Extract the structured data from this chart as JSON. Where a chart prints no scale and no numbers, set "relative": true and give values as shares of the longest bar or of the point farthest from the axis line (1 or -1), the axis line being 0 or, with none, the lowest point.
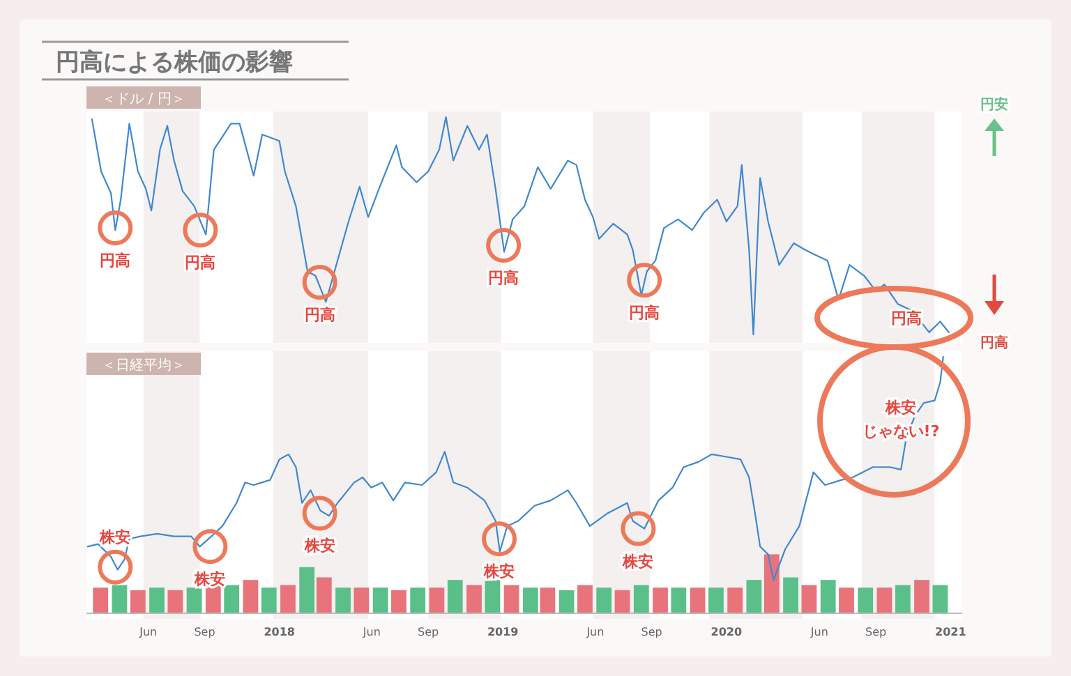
{
  "chart_data": [
    {
      "type": "line",
      "title": "円高による株価の影響",
      "subtitle": "＜ドル / 円＞",
      "relative": true,
      "tick_labels": false,
      "xlim": [
        "2017-02-20",
        "2021-01-20"
      ],
      "bands": [
        {
          "axis": "x",
          "from": "2017-05-24",
          "to": "2017-08-24",
          "color": "#f4f0f0"
        },
        {
          "axis": "x",
          "from": "2017-12-22",
          "to": "2018-05-26",
          "color": "#f4f0f0"
        },
        {
          "axis": "x",
          "from": "2018-09-01",
          "to": "2018-12-29",
          "color": "#f4f0f0"
        },
        {
          "axis": "x",
          "from": "2019-05-28",
          "to": "2019-08-29",
          "color": "#f4f0f0"
        },
        {
          "axis": "x",
          "from": "2019-12-04",
          "to": "2020-05-04",
          "color": "#f4f0f0"
        },
        {
          "axis": "x",
          "from": "2020-08-09",
          "to": "2020-12-06",
          "color": "#f4f0f0"
        }
      ],
      "annotations": [
        {
          "text": "円高",
          "x": "2017-04-08",
          "y": 0.49
        },
        {
          "text": "円高",
          "x": "2017-08-25",
          "y": 0.48
        },
        {
          "text": "円高",
          "x": "2018-03-08",
          "y": 0.24
        },
        {
          "text": "円高",
          "x": "2019-01-02",
          "y": 0.41
        },
        {
          "text": "円高",
          "x": "2019-08-20",
          "y": 0.25
        },
        "円高",
        "円安",
        "円高"
      ],
      "series": [
        {
          "color": "#3f88d0",
          "x": [
            "2017-03-01",
            "2017-03-16",
            "2017-04-01",
            "2017-04-08",
            "2017-04-17",
            "2017-05-01",
            "2017-05-15",
            "2017-05-28",
            "2017-06-06",
            "2017-06-20",
            "2017-07-02",
            "2017-07-13",
            "2017-07-27",
            "2017-08-15",
            "2017-09-03",
            "2017-09-16",
            "2017-10-14",
            "2017-10-28",
            "2017-11-20",
            "2017-12-04",
            "2018-01-01",
            "2018-01-10",
            "2018-01-28",
            "2018-02-16",
            "2018-03-01",
            "2018-03-18",
            "2018-04-06",
            "2018-04-24",
            "2018-05-12",
            "2018-05-26",
            "2018-06-14",
            "2018-07-11",
            "2018-07-20",
            "2018-08-13",
            "2018-09-01",
            "2018-09-19",
            "2018-09-30",
            "2018-10-12",
            "2018-11-04",
            "2018-11-23",
            "2018-12-06",
            "2018-12-20",
            "2019-01-03",
            "2019-01-17",
            "2019-02-05",
            "2019-02-27",
            "2019-03-20",
            "2019-04-17",
            "2019-05-01",
            "2019-05-15",
            "2019-05-28",
            "2019-06-07",
            "2019-06-30",
            "2019-07-23",
            "2019-08-01",
            "2019-08-15",
            "2019-08-24",
            "2019-09-07",
            "2019-09-21",
            "2019-10-14",
            "2019-11-06",
            "2019-11-25",
            "2019-12-17",
            "2020-01-01",
            "2020-01-19",
            "2020-01-26",
            "2020-02-07",
            "2020-02-14",
            "2020-02-25",
            "2020-03-09",
            "2020-03-27",
            "2020-04-20",
            "2020-05-08",
            "2020-05-22",
            "2020-06-14",
            "2020-07-02",
            "2020-07-20",
            "2020-08-13",
            "2020-09-01",
            "2020-09-15",
            "2020-10-07",
            "2020-10-30",
            "2020-11-27",
            "2020-12-15",
            "2020-12-29"
          ],
          "values": [
            0.99,
            0.75,
            0.65,
            0.48,
            0.62,
            0.97,
            0.75,
            0.67,
            0.57,
            0.85,
            0.96,
            0.8,
            0.66,
            0.59,
            0.46,
            0.85,
            0.97,
            0.97,
            0.73,
            0.92,
            0.89,
            0.75,
            0.59,
            0.29,
            0.27,
            0.15,
            0.34,
            0.52,
            0.68,
            0.54,
            0.68,
            0.87,
            0.77,
            0.7,
            0.75,
            0.85,
            1,
            0.8,
            0.96,
            0.85,
            0.92,
            0.67,
            0.38,
            0.53,
            0.59,
            0.77,
            0.67,
            0.8,
            0.78,
            0.62,
            0.54,
            0.44,
            0.51,
            0.46,
            0.39,
            0.18,
            0.29,
            0.34,
            0.49,
            0.53,
            0.48,
            0.56,
            0.62,
            0.52,
            0.59,
            0.78,
            0.39,
            0,
            0.72,
            0.52,
            0.32,
            0.42,
            0.39,
            0.37,
            0.34,
            0.16,
            0.32,
            0.27,
            0.2,
            0.23,
            0.14,
            0.11,
            0.01,
            0.06,
            0.01
          ]
        }
      ]
    },
    {
      "type": "line",
      "subtitle": "＜日経平均＞",
      "relative": true,
      "tick_labels": "x",
      "xlim": [
        "2017-02-20",
        "2021-01-20"
      ],
      "xticks": [
        {
          "value": "2017-06-01",
          "label": "Jun"
        },
        {
          "value": "2017-09-01",
          "label": "Sep"
        },
        {
          "value": "2018-01-01",
          "label": "2018"
        },
        {
          "value": "2018-06-01",
          "label": "Jun"
        },
        {
          "value": "2018-09-01",
          "label": "Sep"
        },
        {
          "value": "2019-01-01",
          "label": "2019"
        },
        {
          "value": "2019-06-01",
          "label": "Jun"
        },
        {
          "value": "2019-09-01",
          "label": "Sep"
        },
        {
          "value": "2020-01-01",
          "label": "2020"
        },
        {
          "value": "2020-06-01",
          "label": "Jun"
        },
        {
          "value": "2020-09-01",
          "label": "Sep"
        },
        {
          "value": "2021-01-01",
          "label": "2021"
        }
      ],
      "bands": [
        {
          "axis": "x",
          "from": "2017-05-24",
          "to": "2017-08-24",
          "color": "#f4f0f0"
        },
        {
          "axis": "x",
          "from": "2017-12-22",
          "to": "2018-05-26",
          "color": "#f4f0f0"
        },
        {
          "axis": "x",
          "from": "2018-09-01",
          "to": "2018-12-29",
          "color": "#f4f0f0"
        },
        {
          "axis": "x",
          "from": "2019-05-28",
          "to": "2019-08-29",
          "color": "#f4f0f0"
        },
        {
          "axis": "x",
          "from": "2019-12-04",
          "to": "2020-05-04",
          "color": "#f4f0f0"
        },
        {
          "axis": "x",
          "from": "2020-08-09",
          "to": "2020-12-06",
          "color": "#f4f0f0"
        }
      ],
      "annotations": [
        {
          "text": "株安",
          "x": "2017-04-08",
          "y": 0.18
        },
        {
          "text": "株安",
          "x": "2017-09-10",
          "y": 0.26
        },
        {
          "text": "株安",
          "x": "2018-03-08",
          "y": 0.39
        },
        {
          "text": "株安",
          "x": "2018-12-26",
          "y": 0.29
        },
        {
          "text": "株安",
          "x": "2019-08-10",
          "y": 0.33
        },
        "株安",
        "じゃない!?"
      ],
      "series": [
        {
          "type": "bar",
          "x": [
            "2017-03-15",
            "2017-04-15",
            "2017-05-15",
            "2017-06-15",
            "2017-07-15",
            "2017-08-15",
            "2017-09-15",
            "2017-10-15",
            "2017-11-15",
            "2017-12-15",
            "2018-01-15",
            "2018-02-15",
            "2018-03-15",
            "2018-04-15",
            "2018-05-15",
            "2018-06-15",
            "2018-07-15",
            "2018-08-15",
            "2018-09-15",
            "2018-10-15",
            "2018-11-15",
            "2018-12-15",
            "2019-01-15",
            "2019-02-15",
            "2019-03-15",
            "2019-04-15",
            "2019-05-15",
            "2019-06-15",
            "2019-07-15",
            "2019-08-15",
            "2019-09-15",
            "2019-10-15",
            "2019-11-15",
            "2019-12-15",
            "2020-01-15",
            "2020-02-15",
            "2020-03-15",
            "2020-04-15",
            "2020-05-15",
            "2020-06-15",
            "2020-07-15",
            "2020-08-15",
            "2020-09-15",
            "2020-10-15",
            "2020-11-15",
            "2020-12-15"
          ],
          "values": [
            0.1,
            0.11,
            0.09,
            0.1,
            0.09,
            0.1,
            0.11,
            0.11,
            0.13,
            0.1,
            0.11,
            0.18,
            0.14,
            0.1,
            0.1,
            0.1,
            0.09,
            0.1,
            0.1,
            0.13,
            0.11,
            0.13,
            0.11,
            0.1,
            0.1,
            0.09,
            0.11,
            0.1,
            0.09,
            0.11,
            0.1,
            0.1,
            0.1,
            0.1,
            0.1,
            0.13,
            0.23,
            0.14,
            0.11,
            0.13,
            0.1,
            0.1,
            0.1,
            0.11,
            0.13,
            0.11
          ],
          "colors": [
            "#e8737a",
            "#5bbf8a",
            "#e8737a",
            "#5bbf8a",
            "#e8737a",
            "#5bbf8a",
            "#e8737a",
            "#5bbf8a",
            "#e8737a",
            "#5bbf8a",
            "#e8737a",
            "#5bbf8a",
            "#e8737a",
            "#5bbf8a",
            "#e8737a",
            "#5bbf8a",
            "#e8737a",
            "#5bbf8a",
            "#e8737a",
            "#5bbf8a",
            "#e8737a",
            "#5bbf8a",
            "#e8737a",
            "#5bbf8a",
            "#e8737a",
            "#5bbf8a",
            "#e8737a",
            "#5bbf8a",
            "#e8737a",
            "#5bbf8a",
            "#e8737a",
            "#5bbf8a",
            "#e8737a",
            "#5bbf8a",
            "#e8737a",
            "#5bbf8a",
            "#e8737a",
            "#5bbf8a",
            "#e8737a",
            "#5bbf8a",
            "#e8737a",
            "#5bbf8a",
            "#e8737a",
            "#5bbf8a",
            "#e8737a",
            "#5bbf8a"
          ]
        },
        {
          "color": "#3f88d0",
          "x": [
            "2017-02-22",
            "2017-03-11",
            "2017-04-01",
            "2017-04-12",
            "2017-04-23",
            "2017-05-01",
            "2017-05-19",
            "2017-06-16",
            "2017-07-13",
            "2017-08-10",
            "2017-08-24",
            "2017-09-12",
            "2017-09-30",
            "2017-10-23",
            "2017-11-06",
            "2017-11-20",
            "2017-12-17",
            "2018-01-01",
            "2018-01-16",
            "2018-01-28",
            "2018-02-07",
            "2018-02-21",
            "2018-03-09",
            "2018-03-23",
            "2018-04-06",
            "2018-05-03",
            "2018-05-17",
            "2018-05-31",
            "2018-06-18",
            "2018-07-06",
            "2018-07-25",
            "2018-08-22",
            "2018-09-14",
            "2018-09-28",
            "2018-10-12",
            "2018-11-04",
            "2018-12-02",
            "2018-12-20",
            "2018-12-27",
            "2019-01-08",
            "2019-01-26",
            "2019-02-22",
            "2019-03-20",
            "2019-04-17",
            "2019-05-01",
            "2019-05-23",
            "2019-06-21",
            "2019-07-23",
            "2019-08-01",
            "2019-08-20",
            "2019-09-12",
            "2019-10-05",
            "2019-10-23",
            "2019-11-16",
            "2019-12-08",
            "2020-01-01",
            "2020-01-24",
            "2020-02-07",
            "2020-02-16",
            "2020-02-25",
            "2020-03-09",
            "2020-03-18",
            "2020-04-06",
            "2020-04-29",
            "2020-05-22",
            "2020-06-10",
            "2020-07-07",
            "2020-07-25",
            "2020-08-27",
            "2020-09-24",
            "2020-10-12",
            "2020-10-21",
            "2020-11-04",
            "2020-11-18",
            "2020-12-06",
            "2020-12-15",
            "2020-12-20"
          ],
          "values": [
            0.26,
            0.27,
            0.22,
            0.17,
            0.21,
            0.29,
            0.3,
            0.31,
            0.3,
            0.3,
            0.26,
            0.3,
            0.34,
            0.43,
            0.51,
            0.5,
            0.52,
            0.6,
            0.62,
            0.57,
            0.43,
            0.48,
            0.4,
            0.38,
            0.43,
            0.51,
            0.53,
            0.49,
            0.51,
            0.44,
            0.51,
            0.5,
            0.55,
            0.63,
            0.51,
            0.49,
            0.44,
            0.36,
            0.24,
            0.34,
            0.36,
            0.42,
            0.44,
            0.48,
            0.43,
            0.34,
            0.39,
            0.43,
            0.36,
            0.33,
            0.44,
            0.49,
            0.57,
            0.59,
            0.62,
            0.61,
            0.6,
            0.53,
            0.4,
            0.26,
            0.23,
            0.13,
            0.25,
            0.34,
            0.55,
            0.5,
            0.52,
            0.53,
            0.57,
            0.57,
            0.56,
            0.69,
            0.77,
            0.82,
            0.83,
            0.9,
            1
          ]
        }
      ]
    }
  ]
}
